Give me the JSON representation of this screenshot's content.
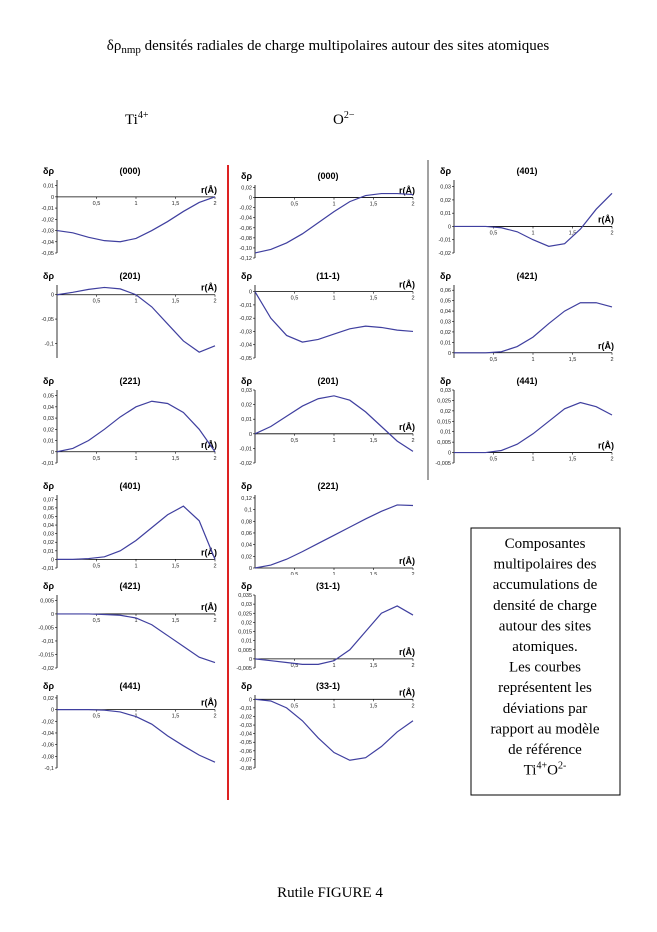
{
  "header": {
    "title": [
      "δρ",
      "nmp",
      " densités radiales de charge multipolaires autour des sites atomiques"
    ]
  },
  "columns": [
    {
      "base": "Ti",
      "sup": "4+"
    },
    {
      "base": "O",
      "sup": "2−"
    }
  ],
  "caption": {
    "lines": [
      "Composantes",
      "multipolaires des",
      "accumulations de",
      "densité de charge",
      "autour des sites",
      "atomiques.",
      "Les courbes",
      "représentent les",
      "déviations par",
      "rapport au modèle",
      "de référence"
    ],
    "formula": [
      "Ti",
      "4+",
      "O",
      "2-"
    ]
  },
  "footer": "Rutile  FIGURE 4",
  "chart_data": [
    {
      "type": "line",
      "title": "(000)",
      "ylabel": "δρ",
      "xlabel": "r(Å)",
      "color": "#3f3f9f",
      "x": [
        0,
        0.2,
        0.4,
        0.6,
        0.8,
        1,
        1.2,
        1.4,
        1.6,
        1.8,
        2
      ],
      "values": [
        -0.03,
        -0.032,
        -0.036,
        -0.039,
        -0.04,
        -0.037,
        -0.03,
        -0.022,
        -0.013,
        -0.005,
        0
      ],
      "xlim": [
        0,
        2
      ],
      "xticks": [
        {
          "value": 0.5,
          "label": "0,5"
        },
        1,
        {
          "value": 1.5,
          "label": "1,5"
        },
        2
      ],
      "ylim": [
        -0.05,
        0.015
      ],
      "yticks": [
        {
          "value": 0.01,
          "label": "0,01"
        },
        0,
        {
          "value": -0.01,
          "label": "-0,01"
        },
        {
          "value": -0.02,
          "label": "-0,02"
        },
        {
          "value": -0.03,
          "label": "-0,03"
        },
        {
          "value": -0.04,
          "label": "-0,04"
        },
        {
          "value": -0.05,
          "label": "-0,05"
        }
      ]
    },
    {
      "type": "line",
      "title": "(201)",
      "ylabel": "δρ",
      "xlabel": "r(Å)",
      "color": "#3f3f9f",
      "x": [
        0,
        0.2,
        0.4,
        0.6,
        0.8,
        1,
        1.2,
        1.4,
        1.6,
        1.8,
        2
      ],
      "values": [
        0,
        0.005,
        0.011,
        0.015,
        0.012,
        0,
        -0.025,
        -0.06,
        -0.095,
        -0.118,
        -0.105
      ],
      "xlim": [
        0,
        2
      ],
      "xticks": [
        {
          "value": 0.5,
          "label": "0,5"
        },
        1,
        {
          "value": 1.5,
          "label": "1,5"
        },
        2
      ],
      "ylim": [
        -0.13,
        0.02
      ],
      "yticks": [
        0,
        {
          "value": -0.05,
          "label": "-0,05"
        },
        {
          "value": -0.1,
          "label": "-0,1"
        }
      ]
    },
    {
      "type": "line",
      "title": "(221)",
      "ylabel": "δρ",
      "xlabel": "r(Å)",
      "color": "#3f3f9f",
      "x": [
        0,
        0.2,
        0.4,
        0.6,
        0.8,
        1,
        1.2,
        1.4,
        1.6,
        1.8,
        2
      ],
      "values": [
        0,
        0.003,
        0.01,
        0.02,
        0.031,
        0.04,
        0.045,
        0.043,
        0.035,
        0.02,
        0
      ],
      "xlim": [
        0,
        2
      ],
      "xticks": [
        {
          "value": 0.5,
          "label": "0,5"
        },
        1,
        {
          "value": 1.5,
          "label": "1,5"
        },
        2
      ],
      "ylim": [
        -0.01,
        0.055
      ],
      "yticks": [
        {
          "value": 0.05,
          "label": "0,05"
        },
        {
          "value": 0.04,
          "label": "0,04"
        },
        {
          "value": 0.03,
          "label": "0,03"
        },
        {
          "value": 0.02,
          "label": "0,02"
        },
        {
          "value": 0.01,
          "label": "0,01"
        },
        0,
        {
          "value": -0.01,
          "label": "-0,01"
        }
      ]
    },
    {
      "type": "line",
      "title": "(401)",
      "ylabel": "δρ",
      "xlabel": "r(Å)",
      "color": "#3f3f9f",
      "x": [
        0,
        0.2,
        0.4,
        0.6,
        0.8,
        1,
        1.2,
        1.4,
        1.6,
        1.8,
        2
      ],
      "values": [
        0,
        0,
        0.001,
        0.003,
        0.01,
        0.022,
        0.037,
        0.052,
        0.062,
        0.045,
        0
      ],
      "xlim": [
        0,
        2
      ],
      "xticks": [
        {
          "value": 0.5,
          "label": "0,5"
        },
        1,
        {
          "value": 1.5,
          "label": "1,5"
        },
        2
      ],
      "ylim": [
        -0.01,
        0.075
      ],
      "yticks": [
        {
          "value": 0.07,
          "label": "0,07"
        },
        {
          "value": 0.06,
          "label": "0,06"
        },
        {
          "value": 0.05,
          "label": "0,05"
        },
        {
          "value": 0.04,
          "label": "0,04"
        },
        {
          "value": 0.03,
          "label": "0,03"
        },
        {
          "value": 0.02,
          "label": "0,02"
        },
        {
          "value": 0.01,
          "label": "0,01"
        },
        0,
        {
          "value": -0.01,
          "label": "-0,01"
        }
      ]
    },
    {
      "type": "line",
      "title": "(421)",
      "ylabel": "δρ",
      "xlabel": "r(Å)",
      "color": "#3f3f9f",
      "x": [
        0,
        0.2,
        0.4,
        0.6,
        0.8,
        1,
        1.2,
        1.4,
        1.6,
        1.8,
        2
      ],
      "values": [
        0,
        0,
        0,
        -0.0002,
        -0.0005,
        -0.0015,
        -0.004,
        -0.008,
        -0.012,
        -0.016,
        -0.018
      ],
      "xlim": [
        0,
        2
      ],
      "xticks": [
        {
          "value": 0.5,
          "label": "0,5"
        },
        1,
        {
          "value": 1.5,
          "label": "1,5"
        },
        2
      ],
      "ylim": [
        -0.02,
        0.007
      ],
      "yticks": [
        {
          "value": 0.005,
          "label": "0,005"
        },
        0,
        {
          "value": -0.005,
          "label": "-0,005"
        },
        {
          "value": -0.01,
          "label": "-0,01"
        },
        {
          "value": -0.015,
          "label": "-0,015"
        },
        {
          "value": -0.02,
          "label": "-0,02"
        }
      ]
    },
    {
      "type": "line",
      "title": "(441)",
      "ylabel": "δρ",
      "xlabel": "r(Å)",
      "color": "#3f3f9f",
      "x": [
        0,
        0.2,
        0.4,
        0.6,
        0.8,
        1,
        1.2,
        1.4,
        1.6,
        1.8,
        2
      ],
      "values": [
        0,
        0,
        0,
        -0.001,
        -0.004,
        -0.012,
        -0.025,
        -0.045,
        -0.062,
        -0.078,
        -0.09
      ],
      "xlim": [
        0,
        2
      ],
      "xticks": [
        {
          "value": 0.5,
          "label": "0,5"
        },
        1,
        {
          "value": 1.5,
          "label": "1,5"
        },
        2
      ],
      "ylim": [
        -0.1,
        0.025
      ],
      "yticks": [
        {
          "value": 0.02,
          "label": "0,02"
        },
        0,
        {
          "value": -0.02,
          "label": "-0,02"
        },
        {
          "value": -0.04,
          "label": "-0,04"
        },
        {
          "value": -0.06,
          "label": "-0,06"
        },
        {
          "value": -0.08,
          "label": "-0,08"
        },
        {
          "value": -0.1,
          "label": "-0,1"
        }
      ]
    },
    {
      "type": "line",
      "title": "(000)",
      "ylabel": "δρ",
      "xlabel": "r(Å)",
      "color": "#3f3f9f",
      "x": [
        0,
        0.2,
        0.4,
        0.6,
        0.8,
        1,
        1.2,
        1.4,
        1.6,
        1.8,
        2
      ],
      "values": [
        -0.11,
        -0.103,
        -0.09,
        -0.072,
        -0.05,
        -0.028,
        -0.008,
        0.004,
        0.008,
        0.008,
        0.006
      ],
      "xlim": [
        0,
        2
      ],
      "xticks": [
        {
          "value": 0.5,
          "label": "0,5"
        },
        1,
        {
          "value": 1.5,
          "label": "1,5"
        },
        2
      ],
      "ylim": [
        -0.12,
        0.025
      ],
      "yticks": [
        {
          "value": 0.02,
          "label": "0,02"
        },
        0,
        {
          "value": -0.02,
          "label": "-0,02"
        },
        {
          "value": -0.04,
          "label": "-0,04"
        },
        {
          "value": -0.06,
          "label": "-0,06"
        },
        {
          "value": -0.08,
          "label": "-0,08"
        },
        {
          "value": -0.1,
          "label": "-0,10"
        },
        {
          "value": -0.12,
          "label": "-0,12"
        }
      ]
    },
    {
      "type": "line",
      "title": "(11-1)",
      "ylabel": "δρ",
      "xlabel": "r(Å)",
      "color": "#3f3f9f",
      "x": [
        0,
        0.2,
        0.4,
        0.6,
        0.8,
        1,
        1.2,
        1.4,
        1.6,
        1.8,
        2
      ],
      "values": [
        0,
        -0.02,
        -0.033,
        -0.038,
        -0.036,
        -0.032,
        -0.028,
        -0.026,
        -0.027,
        -0.029,
        -0.03
      ],
      "xlim": [
        0,
        2
      ],
      "xticks": [
        {
          "value": 0.5,
          "label": "0,5"
        },
        1,
        {
          "value": 1.5,
          "label": "1,5"
        },
        2
      ],
      "ylim": [
        -0.05,
        0.005
      ],
      "yticks": [
        0,
        {
          "value": -0.01,
          "label": "-0,01"
        },
        {
          "value": -0.02,
          "label": "-0,02"
        },
        {
          "value": -0.03,
          "label": "-0,03"
        },
        {
          "value": -0.04,
          "label": "-0,04"
        },
        {
          "value": -0.05,
          "label": "-0,05"
        }
      ]
    },
    {
      "type": "line",
      "title": "(201)",
      "ylabel": "δρ",
      "xlabel": "r(Å)",
      "color": "#3f3f9f",
      "x": [
        0,
        0.2,
        0.4,
        0.6,
        0.8,
        1,
        1.2,
        1.4,
        1.6,
        1.8,
        2
      ],
      "values": [
        0,
        0.005,
        0.012,
        0.019,
        0.024,
        0.026,
        0.023,
        0.015,
        0.005,
        -0.005,
        -0.012
      ],
      "xlim": [
        0,
        2
      ],
      "xticks": [
        {
          "value": 0.5,
          "label": "0,5"
        },
        1,
        {
          "value": 1.5,
          "label": "1,5"
        },
        2
      ],
      "ylim": [
        -0.02,
        0.03
      ],
      "yticks": [
        {
          "value": 0.03,
          "label": "0,03"
        },
        {
          "value": 0.02,
          "label": "0,02"
        },
        {
          "value": 0.01,
          "label": "0,01"
        },
        0,
        {
          "value": -0.01,
          "label": "-0,01"
        },
        {
          "value": -0.02,
          "label": "-0,02"
        }
      ]
    },
    {
      "type": "line",
      "title": "(221)",
      "ylabel": "δρ",
      "xlabel": "r(Å)",
      "color": "#3f3f9f",
      "x": [
        0,
        0.2,
        0.4,
        0.6,
        0.8,
        1,
        1.2,
        1.4,
        1.6,
        1.8,
        2
      ],
      "values": [
        0,
        0.005,
        0.015,
        0.028,
        0.042,
        0.056,
        0.07,
        0.084,
        0.097,
        0.108,
        0.107
      ],
      "xlim": [
        0,
        2
      ],
      "xticks": [
        {
          "value": 0.5,
          "label": "0,5"
        },
        1,
        {
          "value": 1.5,
          "label": "1,5"
        },
        2
      ],
      "ylim": [
        0,
        0.125
      ],
      "yticks": [
        {
          "value": 0.12,
          "label": "0,12"
        },
        {
          "value": 0.1,
          "label": "0,1"
        },
        {
          "value": 0.08,
          "label": "0,08"
        },
        {
          "value": 0.06,
          "label": "0,06"
        },
        {
          "value": 0.04,
          "label": "0,04"
        },
        {
          "value": 0.02,
          "label": "0,02"
        },
        0
      ]
    },
    {
      "type": "line",
      "title": "(31-1)",
      "ylabel": "δρ",
      "xlabel": "r(Å)",
      "color": "#3f3f9f",
      "x": [
        0,
        0.2,
        0.4,
        0.6,
        0.8,
        1,
        1.2,
        1.4,
        1.6,
        1.8,
        2
      ],
      "values": [
        0,
        -0.001,
        -0.002,
        -0.003,
        -0.003,
        -0.001,
        0.005,
        0.015,
        0.025,
        0.029,
        0.024
      ],
      "xlim": [
        0,
        2
      ],
      "xticks": [
        {
          "value": 0.5,
          "label": "0,5"
        },
        1,
        {
          "value": 1.5,
          "label": "1,5"
        },
        2
      ],
      "ylim": [
        -0.005,
        0.035
      ],
      "yticks": [
        {
          "value": 0.035,
          "label": "0,035"
        },
        {
          "value": 0.03,
          "label": "0,03"
        },
        {
          "value": 0.025,
          "label": "0,025"
        },
        {
          "value": 0.02,
          "label": "0,02"
        },
        {
          "value": 0.015,
          "label": "0,015"
        },
        {
          "value": 0.01,
          "label": "0,01"
        },
        {
          "value": 0.005,
          "label": "0,005"
        },
        0,
        {
          "value": -0.005,
          "label": "-0,005"
        }
      ]
    },
    {
      "type": "line",
      "title": "(33-1)",
      "ylabel": "δρ",
      "xlabel": "r(Å)",
      "color": "#3f3f9f",
      "x": [
        0,
        0.2,
        0.4,
        0.6,
        0.8,
        1,
        1.2,
        1.4,
        1.6,
        1.8,
        2
      ],
      "values": [
        0,
        -0.002,
        -0.01,
        -0.025,
        -0.045,
        -0.062,
        -0.071,
        -0.068,
        -0.055,
        -0.038,
        -0.025
      ],
      "xlim": [
        0,
        2
      ],
      "xticks": [
        {
          "value": 0.5,
          "label": "0,5"
        },
        1,
        {
          "value": 1.5,
          "label": "1,5"
        },
        2
      ],
      "ylim": [
        -0.08,
        0.005
      ],
      "yticks": [
        0,
        {
          "value": -0.01,
          "label": "-0,01"
        },
        {
          "value": -0.02,
          "label": "-0,02"
        },
        {
          "value": -0.03,
          "label": "-0,03"
        },
        {
          "value": -0.04,
          "label": "-0,04"
        },
        {
          "value": -0.05,
          "label": "-0,05"
        },
        {
          "value": -0.06,
          "label": "-0,06"
        },
        {
          "value": -0.07,
          "label": "-0,07"
        },
        {
          "value": -0.08,
          "label": "-0,08"
        }
      ]
    },
    {
      "type": "line",
      "title": "(401)",
      "ylabel": "δρ",
      "xlabel": "r(Å)",
      "color": "#3f3f9f",
      "x": [
        0,
        0.2,
        0.4,
        0.6,
        0.8,
        1,
        1.2,
        1.4,
        1.6,
        1.8,
        2
      ],
      "values": [
        0,
        0,
        0,
        -0.001,
        -0.004,
        -0.01,
        -0.015,
        -0.013,
        -0.002,
        0.013,
        0.025
      ],
      "xlim": [
        0,
        2
      ],
      "xticks": [
        {
          "value": 0.5,
          "label": "0,5"
        },
        1,
        {
          "value": 1.5,
          "label": "1,5"
        },
        2
      ],
      "ylim": [
        -0.02,
        0.035
      ],
      "yticks": [
        {
          "value": 0.03,
          "label": "0,03"
        },
        {
          "value": 0.02,
          "label": "0,02"
        },
        {
          "value": 0.01,
          "label": "0,01"
        },
        0,
        {
          "value": -0.01,
          "label": "-0,01"
        },
        {
          "value": -0.02,
          "label": "-0,02"
        }
      ]
    },
    {
      "type": "line",
      "title": "(421)",
      "ylabel": "δρ",
      "xlabel": "r(Å)",
      "color": "#3f3f9f",
      "x": [
        0,
        0.2,
        0.4,
        0.6,
        0.8,
        1,
        1.2,
        1.4,
        1.6,
        1.8,
        2
      ],
      "values": [
        0,
        0,
        0,
        0.001,
        0.006,
        0.015,
        0.028,
        0.04,
        0.048,
        0.048,
        0.044
      ],
      "xlim": [
        0,
        2
      ],
      "xticks": [
        {
          "value": 0.5,
          "label": "0,5"
        },
        1,
        {
          "value": 1.5,
          "label": "1,5"
        },
        2
      ],
      "ylim": [
        -0.005,
        0.065
      ],
      "yticks": [
        {
          "value": 0.06,
          "label": "0,06"
        },
        {
          "value": 0.05,
          "label": "0,05"
        },
        {
          "value": 0.04,
          "label": "0,04"
        },
        {
          "value": 0.03,
          "label": "0,03"
        },
        {
          "value": 0.02,
          "label": "0,02"
        },
        {
          "value": 0.01,
          "label": "0,01"
        },
        0
      ]
    },
    {
      "type": "line",
      "title": "(441)",
      "ylabel": "δρ",
      "xlabel": "r(Å)",
      "color": "#3f3f9f",
      "x": [
        0,
        0.2,
        0.4,
        0.6,
        0.8,
        1,
        1.2,
        1.4,
        1.6,
        1.8,
        2
      ],
      "values": [
        0,
        0,
        0,
        0.001,
        0.004,
        0.009,
        0.015,
        0.021,
        0.024,
        0.022,
        0.018
      ],
      "xlim": [
        0,
        2
      ],
      "xticks": [
        {
          "value": 0.5,
          "label": "0,5"
        },
        1,
        {
          "value": 1.5,
          "label": "1,5"
        },
        2
      ],
      "ylim": [
        -0.005,
        0.03
      ],
      "yticks": [
        {
          "value": 0.03,
          "label": "0,03"
        },
        {
          "value": 0.025,
          "label": "0,025"
        },
        {
          "value": 0.02,
          "label": "0,02"
        },
        {
          "value": 0.015,
          "label": "0,015"
        },
        {
          "value": 0.01,
          "label": "0,01"
        },
        {
          "value": 0.005,
          "label": "0,005"
        },
        0,
        {
          "value": -0.005,
          "label": "-0,005"
        }
      ]
    }
  ]
}
